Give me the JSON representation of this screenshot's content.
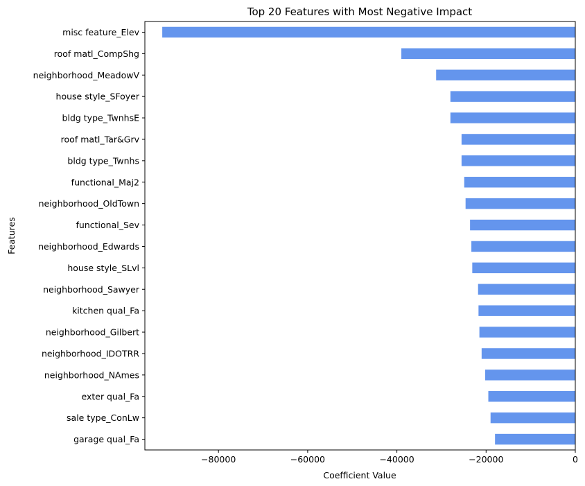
{
  "chart_data": {
    "type": "bar",
    "orientation": "horizontal",
    "title": "Top 20 Features with Most Negative Impact",
    "xlabel": "Coefficient Value",
    "ylabel": "Features",
    "xlim": [
      -96500,
      0
    ],
    "xticks": [
      -80000,
      -60000,
      -40000,
      -20000,
      0
    ],
    "xtick_labels": [
      "−80000",
      "−60000",
      "−40000",
      "−20000",
      "0"
    ],
    "bar_color": "#6495ed",
    "grid": false,
    "categories": [
      "misc feature_Elev",
      "roof matl_CompShg",
      "neighborhood_MeadowV",
      "house style_SFoyer",
      "bldg type_TwnhsE",
      "roof matl_Tar&Grv",
      "bldg type_Twnhs",
      "functional_Maj2",
      "neighborhood_OldTown",
      "functional_Sev",
      "neighborhood_Edwards",
      "house style_SLvl",
      "neighborhood_Sawyer",
      "kitchen qual_Fa",
      "neighborhood_Gilbert",
      "neighborhood_IDOTRR",
      "neighborhood_NAmes",
      "exter qual_Fa",
      "sale type_ConLw",
      "garage qual_Fa"
    ],
    "values": [
      -92600,
      -39000,
      -31200,
      -28000,
      -28000,
      -25500,
      -25500,
      -24900,
      -24600,
      -23600,
      -23300,
      -23100,
      -21800,
      -21700,
      -21500,
      -21000,
      -20200,
      -19500,
      -19000,
      -18000
    ]
  }
}
